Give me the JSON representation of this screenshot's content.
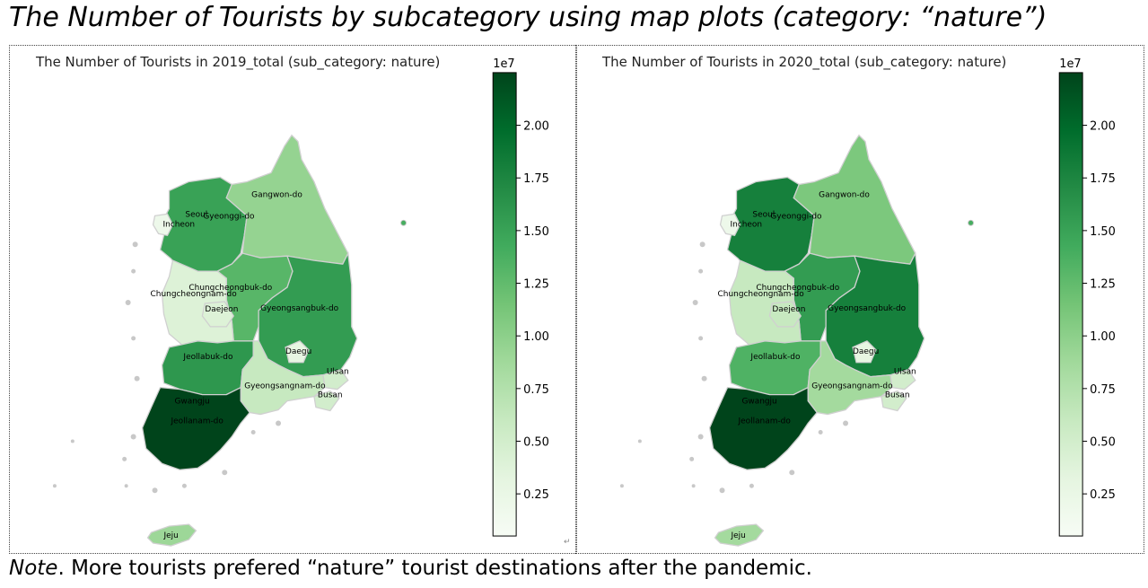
{
  "page": {
    "title": "The Number of Tourists by subcategory using map plots (category: “nature”)",
    "note_label": "Note",
    "note_text": ". More tourists prefered “nature” tourist destinations after the pandemic."
  },
  "colormap": {
    "name": "Greens",
    "min_color": "#f7fcf5",
    "max_color": "#00441b",
    "range": [
      0.05,
      2.25
    ],
    "ticks": [
      "0.25",
      "0.50",
      "0.75",
      "1.00",
      "1.25",
      "1.50",
      "1.75",
      "2.00"
    ],
    "exponent": "1e7",
    "border_color": "#c8c8c8"
  },
  "regions": [
    "Seoul",
    "Gyeonggi-do",
    "Incheon",
    "Gangwon-do",
    "Chungcheongbuk-do",
    "Chungcheongnam-do",
    "Daejeon",
    "Gyeongsangbuk-do",
    "Daegu",
    "Jeollabuk-do",
    "Ulsan",
    "Gyeongsangnam-do",
    "Busan",
    "Gwangju",
    "Jeollanam-do",
    "Jeju"
  ],
  "maps": [
    {
      "title": "The Number of Tourists in 2019_total (sub_category: nature)",
      "values_1e7": {
        "Seoul": 0.3,
        "Gyeonggi-do": 1.5,
        "Incheon": 0.2,
        "Gangwon-do": 0.95,
        "Chungcheongbuk-do": 1.3,
        "Chungcheongnam-do": 0.4,
        "Daejeon": 0.4,
        "Gyeongsangbuk-do": 1.55,
        "Daegu": 0.3,
        "Jeollabuk-do": 1.6,
        "Ulsan": 0.5,
        "Gyeongsangnam-do": 0.6,
        "Busan": 0.5,
        "Gwangju": 0.2,
        "Jeollanam-do": 2.25,
        "Jeju": 0.9
      }
    },
    {
      "title": "The Number of Tourists in 2020_total (sub_category: nature)",
      "values_1e7": {
        "Seoul": 0.3,
        "Gyeonggi-do": 1.8,
        "Incheon": 0.2,
        "Gangwon-do": 1.1,
        "Chungcheongbuk-do": 1.55,
        "Chungcheongnam-do": 0.6,
        "Daejeon": 0.6,
        "Gyeongsangbuk-do": 1.8,
        "Daegu": 0.3,
        "Jeollabuk-do": 1.35,
        "Ulsan": 0.5,
        "Gyeongsangnam-do": 0.85,
        "Busan": 0.5,
        "Gwangju": 0.2,
        "Jeollanam-do": 2.25,
        "Jeju": 0.85
      }
    }
  ]
}
